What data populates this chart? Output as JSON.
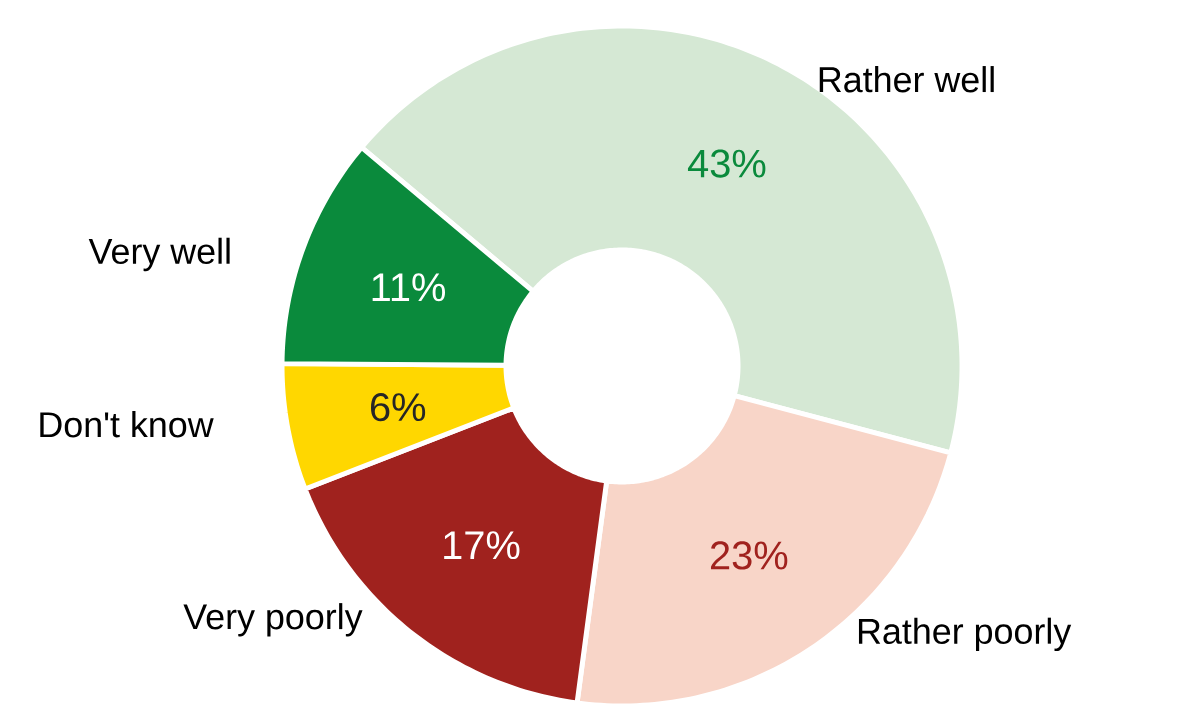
{
  "chart_data": {
    "type": "donut",
    "categories": [
      "Rather well",
      "Rather poorly",
      "Very poorly",
      "Don't know",
      "Very well"
    ],
    "values": [
      43,
      23,
      17,
      6,
      11
    ],
    "colors": [
      "#d5e8d4",
      "#f8d5c8",
      "#a0221e",
      "#ffd700",
      "#0a8a3c"
    ],
    "value_labels": [
      "43%",
      "23%",
      "17%",
      "6%",
      "11%"
    ]
  }
}
